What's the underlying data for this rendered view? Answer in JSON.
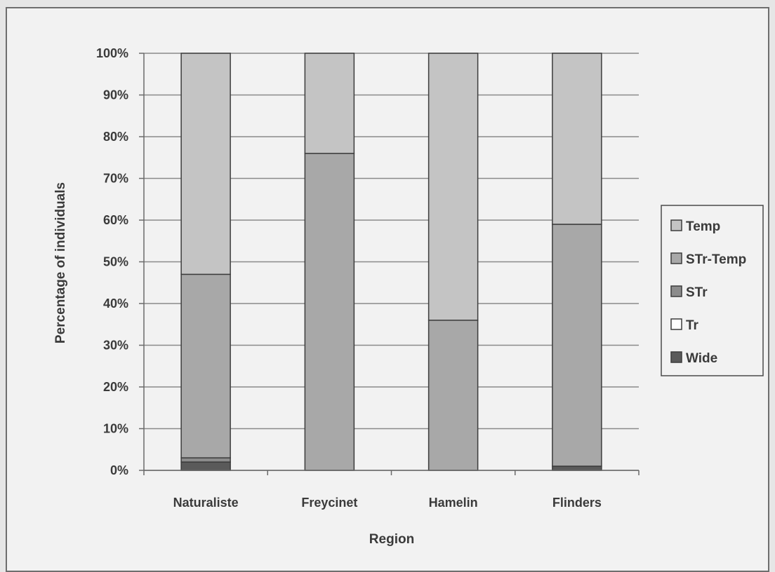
{
  "chart_data": {
    "type": "bar",
    "stacked": true,
    "percent_stacked": true,
    "categories": [
      "Naturaliste",
      "Freycinet",
      "Hamelin",
      "Flinders"
    ],
    "series": [
      {
        "name": "Wide",
        "values": [
          2,
          0,
          0,
          1
        ],
        "color": "#5a5a5a"
      },
      {
        "name": "Tr",
        "values": [
          0,
          0,
          0,
          0
        ],
        "color": "#ffffff"
      },
      {
        "name": "STr",
        "values": [
          1,
          0,
          0,
          0
        ],
        "color": "#8c8c8c"
      },
      {
        "name": "STr-Temp",
        "values": [
          44,
          76,
          36,
          58
        ],
        "color": "#a8a8a8"
      },
      {
        "name": "Temp",
        "values": [
          53,
          24,
          64,
          41
        ],
        "color": "#c4c4c4"
      }
    ],
    "y_ticks": [
      "0%",
      "10%",
      "20%",
      "30%",
      "40%",
      "50%",
      "60%",
      "70%",
      "80%",
      "90%",
      "100%"
    ],
    "ylim": [
      0,
      100
    ],
    "xlabel": "Region",
    "ylabel": "Percentage of individuals",
    "grid": true,
    "legend_position": "right",
    "legend_order": [
      "Temp",
      "STr-Temp",
      "STr",
      "Tr",
      "Wide"
    ]
  }
}
